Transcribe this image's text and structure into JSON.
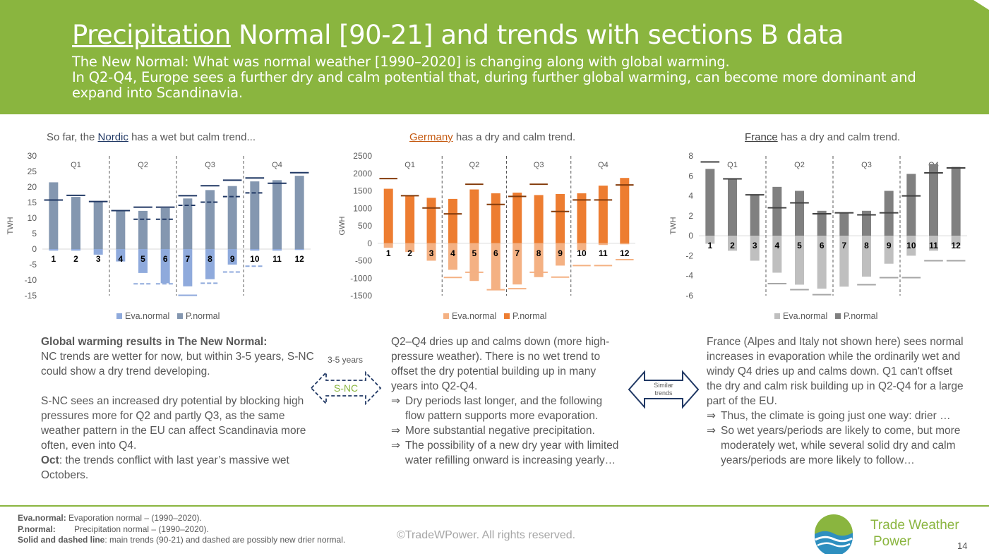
{
  "header": {
    "title_underlined": "Precipitation",
    "title_rest": " Normal [90-21] and trends with sections B data",
    "subtitle_lines": [
      "The New Normal: What was normal weather [1990–2020] is changing along with global warming.",
      "In Q2-Q4, Europe sees a further dry and calm potential that, during further global warming, can become more dominant and expand into Scandinavia."
    ]
  },
  "colors": {
    "header_bg": "#8ab53f",
    "nordic_p": "#8497b0",
    "nordic_eva": "#8faadc",
    "nordic_trend": "#203864",
    "germany_p": "#ed7d31",
    "germany_eva": "#f4b183",
    "germany_trend": "#843c0c",
    "france_p": "#808080",
    "france_eva": "#bfbfbf",
    "france_trend": "#404040"
  },
  "charts": {
    "nordic": {
      "title_prefix": "So far, the ",
      "title_link": "Nordic",
      "title_suffix": " has a wet but calm trend..."
    },
    "germany": {
      "title_prefix": "",
      "title_link": "Germany",
      "title_suffix": " has a dry and calm trend."
    },
    "france": {
      "title_prefix": "",
      "title_link": "France",
      "title_suffix": " has a dry and calm trend."
    }
  },
  "chart_data": [
    {
      "type": "bar",
      "id": "nordic",
      "ylabel": "TWH",
      "ylim": [
        -15,
        30
      ],
      "yticks": [
        -15,
        -10,
        -5,
        0,
        5,
        10,
        15,
        20,
        25,
        30
      ],
      "categories": [
        "1",
        "2",
        "3",
        "4",
        "5",
        "6",
        "7",
        "8",
        "9",
        "10",
        "11",
        "12"
      ],
      "quarters": [
        "Q1",
        "Q2",
        "Q3",
        "Q4"
      ],
      "series": [
        {
          "name": "Eva.normal",
          "values": [
            -0.5,
            -0.5,
            -1.8,
            -4,
            -7.7,
            -11,
            -12,
            -9.7,
            -5,
            -0.5,
            -0.5,
            -0.3
          ]
        },
        {
          "name": "P.normal",
          "values": [
            21.5,
            16.8,
            15.2,
            12.2,
            12.3,
            13.2,
            16.3,
            19,
            20.3,
            21.8,
            22.2,
            23.6
          ]
        }
      ],
      "solid_trend": [
        15.8,
        17.3,
        15.3,
        12.4,
        13.5,
        13.5,
        17.2,
        20.4,
        22.2,
        22.9,
        21.2,
        24.6
      ],
      "dashed_trend": [
        null,
        null,
        null,
        null,
        9.6,
        9.6,
        14.1,
        15.1,
        16.9,
        18.1,
        null,
        null
      ],
      "eva_solid_trend": [
        null,
        null,
        null,
        null,
        null,
        null,
        -14.9,
        null,
        null,
        null,
        null,
        null
      ],
      "eva_dashed_trend": [
        null,
        null,
        null,
        null,
        -11.2,
        -11.2,
        -14.9,
        -11,
        -7.4,
        -5.5,
        null,
        null
      ],
      "legend": [
        "Eva.normal",
        "P.normal"
      ],
      "legend_position": "bottom"
    },
    {
      "type": "bar",
      "id": "germany",
      "ylabel": "GWH",
      "ylim": [
        -1500,
        2500
      ],
      "yticks": [
        -1500,
        -1000,
        -500,
        0,
        500,
        1000,
        1500,
        2000,
        2500
      ],
      "categories": [
        "1",
        "2",
        "3",
        "4",
        "5",
        "6",
        "7",
        "8",
        "9",
        "10",
        "11",
        "12"
      ],
      "quarters": [
        "Q1",
        "Q2",
        "Q3",
        "Q4"
      ],
      "series": [
        {
          "name": "Eva.normal",
          "values": [
            -130,
            -250,
            -500,
            -760,
            -1080,
            -1320,
            -1180,
            -970,
            -640,
            -200,
            -50,
            -30
          ]
        },
        {
          "name": "P.normal",
          "values": [
            1560,
            1370,
            1300,
            1270,
            1540,
            1430,
            1450,
            1380,
            1410,
            1430,
            1650,
            1870
          ]
        }
      ],
      "solid_trend": [
        1850,
        1360,
        1010,
        840,
        1690,
        1110,
        1340,
        1690,
        910,
        1240,
        1240,
        1670
      ],
      "eva_solid_trend": [
        null,
        null,
        null,
        -980,
        -830,
        -1330,
        -1300,
        -830,
        -970,
        -640,
        -640,
        -470
      ],
      "legend": [
        "Eva.normal",
        "P.normal"
      ],
      "legend_position": "bottom"
    },
    {
      "type": "bar",
      "id": "france",
      "ylabel": "TWH",
      "ylim": [
        -6,
        8
      ],
      "yticks": [
        -6,
        -4,
        -2,
        0,
        2,
        4,
        6,
        8
      ],
      "categories": [
        "1",
        "2",
        "3",
        "4",
        "5",
        "6",
        "7",
        "8",
        "9",
        "10",
        "11",
        "12"
      ],
      "quarters": [
        "Q1",
        "Q2",
        "Q3",
        "Q4"
      ],
      "series": [
        {
          "name": "Eva.normal",
          "values": [
            -0.8,
            -1.5,
            -2.5,
            -3.7,
            -4.9,
            -5.3,
            -5.1,
            -4.1,
            -2.8,
            -2.0,
            -1.5,
            -1.0
          ]
        },
        {
          "name": "P.normal",
          "values": [
            6.7,
            5.7,
            4.1,
            4.9,
            4.5,
            2.5,
            2.3,
            2.5,
            4.5,
            6.2,
            7.2,
            6.9
          ]
        }
      ],
      "solid_trend": [
        7.4,
        5.7,
        4.1,
        2.8,
        3.3,
        2.2,
        2.3,
        2.1,
        2.3,
        4.0,
        6.3,
        6.8
      ],
      "eva_solid_trend": [
        null,
        null,
        null,
        -4.8,
        -5.4,
        -5.9,
        null,
        -4.9,
        -4.2,
        -4.2,
        -2.5,
        -2.5
      ],
      "legend": [
        "Eva.normal",
        "P.normal"
      ],
      "legend_position": "bottom"
    }
  ],
  "text": {
    "nordic": {
      "bold_intro": "Global warming results in The New Normal:",
      "line1": "NC trends are wetter for now, but within 3-5 years, S-NC could show a dry trend developing.",
      "line2": "S-NC sees an increased dry potential by blocking high pressures more for Q2 and partly Q3, as the same weather pattern in the EU can affect Scandinavia more often, even into Q4.",
      "oct_bold": "Oct",
      "oct_rest": ": the trends conflict with last year’s massive wet Octobers."
    },
    "germany": {
      "intro": "Q2–Q4 dries up and calms down (more high-pressure weather). There is no wet trend to offset the dry potential building up in many years into Q2-Q4.",
      "bullets": [
        "Dry periods last longer, and the following flow pattern supports more evaporation.",
        "More substantial negative precipitation.",
        "The possibility of a new dry year with limited water refilling onward is increasing yearly…"
      ]
    },
    "france": {
      "intro": "France (Alpes and Italy not shown here) sees normal increases in evaporation while the ordinarily wet and windy Q4 dries up and calms down. Q1 can't offset the dry and calm risk building up in Q2-Q4 for a large part of the EU.",
      "bullets": [
        "Thus, the climate is going just one way: drier …",
        "So wet years/periods are likely to come, but more moderately wet, while several solid dry and calm years/periods are more likely to follow…"
      ]
    },
    "bullet_symbol": "⇒"
  },
  "arrows": {
    "snc_top_label": "3-5 years",
    "snc_label": "S-NC",
    "similar_label_1": "Similar",
    "similar_label_2": "trends"
  },
  "footer": {
    "eva_key": "Eva.normal:",
    "eva_text": " Evaporation normal – (1990–2020).",
    "p_key": "P.normal:",
    "p_text": "Precipitation normal – (1990–2020).",
    "lines_key": "Solid and dashed line",
    "lines_text": ": main trends (90-21) and dashed are possibly new drier normal.",
    "copyright": "©TradeWPower. All rights reserved.",
    "brand_line1": "Trade Weather",
    "brand_line2": "Power",
    "page_number": "14"
  }
}
